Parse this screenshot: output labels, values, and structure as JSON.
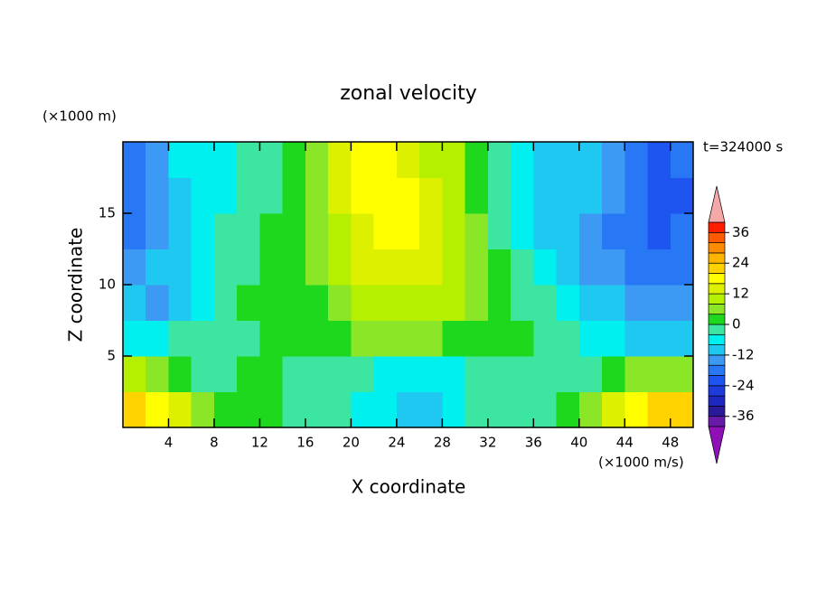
{
  "chart_data": {
    "type": "contour",
    "title": "zonal velocity",
    "x_label": "X coordinate",
    "y_label": "Z coordinate",
    "x_unit": "(×1000 m/s)",
    "y_unit": "(×1000 m)",
    "time_label": "t=324000 s",
    "xlim": [
      0,
      50
    ],
    "ylim": [
      0,
      20
    ],
    "xticks": [
      4,
      8,
      12,
      16,
      20,
      24,
      28,
      32,
      36,
      40,
      44,
      48
    ],
    "yticks": [
      5,
      10,
      15
    ],
    "x": [
      1,
      3,
      5,
      7,
      9,
      11,
      13,
      15,
      17,
      19,
      21,
      23,
      25,
      27,
      29,
      31,
      33,
      35,
      37,
      39,
      41,
      43,
      45,
      47,
      49
    ],
    "y": [
      1.25,
      3.75,
      6.25,
      8.75,
      11.25,
      13.75,
      16.25,
      18.75
    ],
    "values": [
      [
        22,
        18,
        14,
        6,
        2,
        2,
        2,
        -2,
        -2,
        -2,
        -6,
        -6,
        -10,
        -10,
        -6,
        -2,
        -2,
        -2,
        -2,
        2,
        6,
        14,
        18,
        22,
        22
      ],
      [
        10,
        6,
        2,
        -2,
        -2,
        2,
        2,
        -2,
        -2,
        -2,
        -2,
        -6,
        -6,
        -6,
        -6,
        -2,
        -2,
        -2,
        -2,
        -2,
        -2,
        2,
        6,
        6,
        6
      ],
      [
        -6,
        -6,
        -2,
        -2,
        -2,
        -2,
        2,
        2,
        2,
        2,
        6,
        6,
        6,
        6,
        2,
        2,
        2,
        2,
        -2,
        -2,
        -6,
        -6,
        -10,
        -10,
        -10
      ],
      [
        -10,
        -14,
        -10,
        -6,
        -2,
        2,
        2,
        2,
        2,
        6,
        10,
        10,
        10,
        10,
        10,
        6,
        2,
        -2,
        -2,
        -6,
        -10,
        -10,
        -14,
        -14,
        -14
      ],
      [
        -14,
        -10,
        -10,
        -6,
        -2,
        -2,
        2,
        2,
        6,
        10,
        14,
        14,
        14,
        14,
        10,
        6,
        2,
        -2,
        -6,
        -10,
        -14,
        -14,
        -18,
        -18,
        -18
      ],
      [
        -18,
        -14,
        -10,
        -6,
        -2,
        -2,
        2,
        2,
        6,
        10,
        14,
        18,
        18,
        14,
        10,
        6,
        -2,
        -6,
        -10,
        -10,
        -14,
        -18,
        -18,
        -22,
        -18
      ],
      [
        -18,
        -14,
        -10,
        -6,
        -6,
        -2,
        -2,
        2,
        6,
        14,
        18,
        18,
        18,
        14,
        10,
        2,
        -2,
        -6,
        -10,
        -10,
        -10,
        -14,
        -18,
        -22,
        -22
      ],
      [
        -18,
        -14,
        -6,
        -6,
        -6,
        -2,
        -2,
        2,
        6,
        14,
        18,
        18,
        14,
        10,
        10,
        2,
        -2,
        -6,
        -10,
        -10,
        -10,
        -14,
        -18,
        -22,
        -18
      ]
    ],
    "levels": [
      -40,
      -36,
      -32,
      -28,
      -24,
      -20,
      -16,
      -12,
      -8,
      -4,
      0,
      4,
      8,
      12,
      16,
      20,
      24,
      28,
      32,
      36,
      40
    ],
    "colors": [
      "#6a1aa8",
      "#2a1a9a",
      "#1e28c0",
      "#1e3cdc",
      "#1e55f0",
      "#2878f5",
      "#3c9af5",
      "#1ec8f0",
      "#00f0f0",
      "#3ce6a0",
      "#1ed81e",
      "#8ce628",
      "#b4f000",
      "#dcf000",
      "#ffff00",
      "#ffd200",
      "#ffb400",
      "#ff8c00",
      "#ff5a00",
      "#ff1e00"
    ],
    "under_color": "#9010b8",
    "over_color": "#f5a8a8",
    "colorbar_ticks": [
      -36,
      -24,
      -12,
      0,
      12,
      24,
      36
    ]
  }
}
